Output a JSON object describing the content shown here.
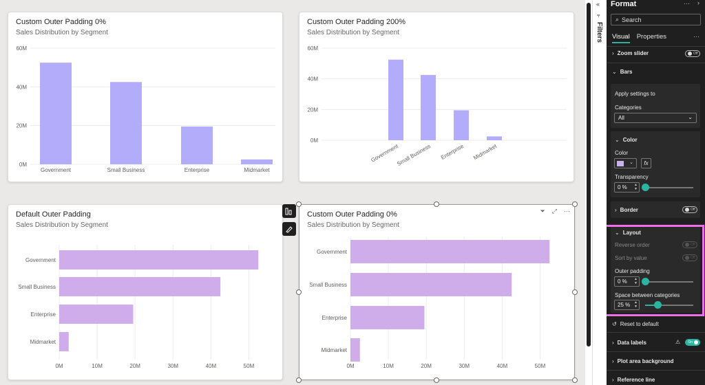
{
  "charts": [
    {
      "title": "Custom Outer Padding 0%",
      "subtitle": "Sales Distribution by Segment",
      "chart_data": {
        "type": "bar",
        "orientation": "vertical",
        "categories": [
          "Government",
          "Small Business",
          "Enterprise",
          "Midmarket"
        ],
        "values": [
          52.5,
          42.5,
          19.5,
          2.5
        ],
        "ticks": [
          "0M",
          "20M",
          "40M",
          "60M"
        ],
        "ylim": [
          0,
          60
        ],
        "color": "#b3acfa",
        "outer_padding": 0
      }
    },
    {
      "title": "Custom Outer Padding 200%",
      "subtitle": "Sales Distribution by Segment",
      "chart_data": {
        "type": "bar",
        "orientation": "vertical",
        "categories": [
          "Government",
          "Small Business",
          "Enterprise",
          "Midmarket"
        ],
        "values": [
          52.5,
          42.5,
          19.5,
          2.5
        ],
        "ticks": [
          "0M",
          "20M",
          "40M",
          "60M"
        ],
        "ylim": [
          0,
          60
        ],
        "color": "#b3acfa",
        "outer_padding": 200
      }
    },
    {
      "title": "Default Outer Padding",
      "subtitle": "Sales Distribution by Segment",
      "chart_data": {
        "type": "bar",
        "orientation": "horizontal",
        "categories": [
          "Government",
          "Small Business",
          "Enterprise",
          "Midmarket"
        ],
        "values": [
          52.5,
          42.5,
          19.5,
          2.5
        ],
        "ticks": [
          "0M",
          "10M",
          "20M",
          "30M",
          "40M",
          "50M"
        ],
        "xlim": [
          0,
          55
        ],
        "color": "#cfadeb",
        "grid": true
      }
    },
    {
      "title": "Custom Outer Padding 0%",
      "subtitle": "Sales Distribution by Segment",
      "chart_data": {
        "type": "bar",
        "orientation": "horizontal",
        "categories": [
          "Government",
          "Small Business",
          "Enterprise",
          "Midmarket"
        ],
        "values": [
          52.5,
          42.5,
          19.5,
          2.5
        ],
        "ticks": [
          "0M",
          "10M",
          "20M",
          "30M",
          "40M",
          "50M"
        ],
        "xlim": [
          0,
          55
        ],
        "color": "#cfadeb",
        "grid": true
      }
    }
  ],
  "filters": {
    "label": "Filters"
  },
  "format": {
    "title": "Format",
    "more": "···",
    "search_placeholder": "Search",
    "tabs": [
      "Visual",
      "Properties"
    ],
    "tabs_more": "···",
    "zoom_slider": "Zoom slider",
    "bars": "Bars",
    "apply_settings": "Apply settings to",
    "categories_label": "Categories",
    "categories_value": "All",
    "color_section": "Color",
    "color_label": "Color",
    "color_value": "#c9b3ec",
    "fx": "fx",
    "transparency_label": "Transparency",
    "transparency_value": "0 %",
    "transparency_level": 0,
    "border": "Border",
    "layout": "Layout",
    "reverse_order": "Reverse order",
    "sort_by_value": "Sort by value",
    "outer_padding_label": "Outer padding",
    "outer_padding_value": "0 %",
    "outer_padding_level": 0,
    "space_between_label": "Space between categories",
    "space_between_value": "25 %",
    "space_between_level": 0.25,
    "reset": "Reset to default",
    "data_labels": "Data labels",
    "plot_area_bg": "Plot area background",
    "reference_line": "Reference line",
    "toggle_off": "Off",
    "toggle_on": "On",
    "accent": "#2bb5a0",
    "highlight": "#ee70e8"
  }
}
